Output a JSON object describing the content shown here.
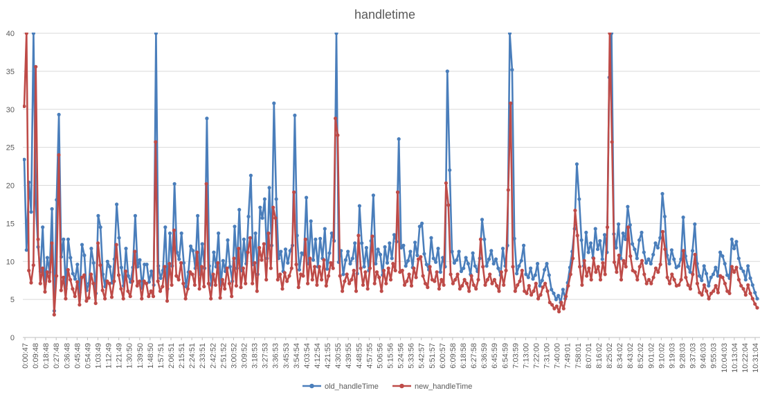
{
  "chart_data": {
    "type": "line",
    "title": "handletime",
    "xlabel": "",
    "ylabel": "",
    "ylim": [
      0,
      40
    ],
    "yticks": [
      0,
      5,
      10,
      15,
      20,
      25,
      30,
      35,
      40
    ],
    "grid": true,
    "legend_position": "bottom",
    "xtick_labels": [
      "0:00:47",
      "0:09:48",
      "0:18:48",
      "0:27:48",
      "0:36:48",
      "0:45:48",
      "0:54:49",
      "1:03:49",
      "1:12:49",
      "1:21:49",
      "1:30:50",
      "1:39:50",
      "1:48:50",
      "1:57:51",
      "2:06:51",
      "2:15:51",
      "2:24:51",
      "2:33:51",
      "2:42:52",
      "2:51:52",
      "3:00:52",
      "3:09:52",
      "3:18:53",
      "3:27:53",
      "3:36:53",
      "3:45:53",
      "3:54:54",
      "4:03:54",
      "4:12:54",
      "4:21:55",
      "4:30:55",
      "4:39:55",
      "4:48:55",
      "4:57:55",
      "5:06:56",
      "5:15:56",
      "5:24:56",
      "5:33:56",
      "5:42:57",
      "5:51:57",
      "6:00:57",
      "6:09:58",
      "6:18:58",
      "6:27:58",
      "6:36:59",
      "6:45:59",
      "6:54:59",
      "7:03:59",
      "7:13:00",
      "7:22:00",
      "7:31:00",
      "7:40:00",
      "7:49:01",
      "7:58:01",
      "8:07:01",
      "8:16:02",
      "8:25:02",
      "8:34:02",
      "8:43:02",
      "8:52:02",
      "9:01:02",
      "9:10:02",
      "9:19:03",
      "9:28:03",
      "9:37:03",
      "9:46:03",
      "9:55:03",
      "10:04:03",
      "10:13:04",
      "10:22:04",
      "10:31:04"
    ],
    "series": [
      {
        "name": "old_handleTime",
        "color": "#4a7ebb",
        "values": [
          23.4,
          11.5,
          20.4,
          16.5,
          42,
          17.8,
          11.9,
          8.7,
          14.5,
          7,
          10.5,
          8.6,
          16.9,
          3.5,
          18.1,
          29.3,
          10.6,
          12.9,
          6.4,
          12.9,
          10.5,
          8.4,
          7.7,
          9.6,
          5.9,
          12.2,
          10.8,
          6.2,
          7.1,
          11.7,
          9.8,
          5.8,
          16,
          14.5,
          8.3,
          6.7,
          10,
          9.3,
          7.2,
          10.3,
          17.5,
          13.1,
          9.2,
          6.8,
          11.7,
          8.1,
          7.3,
          9.2,
          16,
          9.3,
          10.2,
          6.5,
          9.6,
          9.6,
          7.3,
          8.7,
          6.9,
          42,
          9.4,
          7.8,
          8.8,
          14.5,
          6.4,
          13.7,
          9.4,
          20.2,
          11.2,
          10.3,
          13.7,
          9.8,
          6.7,
          8.6,
          12,
          11.4,
          9.1,
          16,
          8.3,
          12.3,
          9.1,
          28.8,
          9.4,
          6.9,
          11.2,
          9.3,
          13.7,
          6.9,
          10.1,
          8.7,
          12.8,
          9.3,
          7.4,
          14.6,
          9.1,
          16.8,
          8.8,
          12.9,
          9.7,
          15.9,
          21.3,
          9.6,
          13.7,
          8.3,
          17.1,
          15.7,
          18.2,
          10.4,
          19.7,
          12.1,
          30.8,
          18.2,
          10.4,
          11.3,
          8.7,
          11.6,
          9.8,
          11.4,
          12.1,
          29.2,
          13.4,
          8.9,
          11.1,
          10.9,
          18.4,
          9.7,
          15.3,
          10.2,
          12.9,
          9.3,
          13,
          10.4,
          14.3,
          9,
          11.1,
          13.7,
          12.7,
          42,
          9.9,
          11.4,
          8.3,
          10.2,
          11.3,
          9.7,
          10.4,
          12.4,
          8.4,
          17.3,
          12.4,
          9.3,
          11.8,
          8.8,
          12.7,
          18.7,
          9.7,
          11.6,
          10.9,
          8.2,
          11.9,
          9.8,
          12.4,
          10.4,
          13.5,
          12.6,
          26.1,
          11.8,
          12.1,
          9.4,
          10.1,
          11.3,
          9.2,
          12.5,
          10.8,
          14.6,
          15,
          11,
          9.6,
          8.9,
          13.1,
          10.4,
          9.9,
          11.7,
          8.6,
          10.5,
          9.3,
          35,
          22,
          11.3,
          9.8,
          10.2,
          11.3,
          8.7,
          9.1,
          10.5,
          9.7,
          8.3,
          11.1,
          9.4,
          8.7,
          10.4,
          15.5,
          12.9,
          9.4,
          10.3,
          11.4,
          9.7,
          10.3,
          9.1,
          8.2,
          11.7,
          9.4,
          12.1,
          42,
          35.2,
          13,
          8.4,
          9.4,
          10.1,
          12.1,
          8.3,
          7.9,
          9.1,
          7.7,
          8.2,
          9.7,
          6.8,
          7.5,
          8.9,
          9.7,
          8.2,
          6.3,
          5.8,
          5,
          5.5,
          4.6,
          6.3,
          5.1,
          7.2,
          9.2,
          11.3,
          14.3,
          22.8,
          18.2,
          12.8,
          9.4,
          13.8,
          11.2,
          12.4,
          10.5,
          14.3,
          11.6,
          12.7,
          10.3,
          13.5,
          11.2,
          34.2,
          42,
          13.6,
          11.8,
          14.9,
          10.4,
          13.7,
          12.9,
          17.2,
          14.8,
          12.3,
          11.6,
          10.4,
          12.8,
          13.8,
          11.2,
          9.8,
          10.3,
          9.7,
          10.9,
          12.4,
          11.8,
          13.1,
          18.9,
          15.9,
          10.8,
          9.7,
          11.5,
          10.3,
          9.2,
          9.4,
          10.3,
          15.8,
          10.7,
          9.3,
          8.6,
          11.4,
          14.9,
          9.7,
          8.1,
          7.5,
          9.4,
          8.4,
          6.8,
          7.9,
          8.3,
          9.2,
          8.1,
          11.2,
          10.7,
          9.7,
          8.2,
          7.8,
          12.9,
          11.7,
          12.6,
          10.4,
          9.1,
          8.7,
          7.6,
          9.4,
          7.8,
          6.9,
          5.9,
          5.1
        ]
      },
      {
        "name": "new_handleTime",
        "color": "#be4b48",
        "values": [
          30.4,
          42,
          8.8,
          7.2,
          9.5,
          35.6,
          12.9,
          7.1,
          9.1,
          6,
          8.6,
          7.4,
          12.4,
          3,
          8.1,
          24,
          6.2,
          7.9,
          5.1,
          8.9,
          7.6,
          6.4,
          5.4,
          7.3,
          4.3,
          7.9,
          8.2,
          4.8,
          5.2,
          8.3,
          7.1,
          4.5,
          12.4,
          9.5,
          6.2,
          5.1,
          7.4,
          7.1,
          5.3,
          7.4,
          12.2,
          8.2,
          6.4,
          5.1,
          8.7,
          6.1,
          5.4,
          7.4,
          11.3,
          6.8,
          7.4,
          5.1,
          7.4,
          7.1,
          5.4,
          6.1,
          5.4,
          25.7,
          7.4,
          6.1,
          6.7,
          9.3,
          4.8,
          9.7,
          6.9,
          14.1,
          8.1,
          7.6,
          9.8,
          7.1,
          5.1,
          6.4,
          8.6,
          8.3,
          6.9,
          11.2,
          6.4,
          9.3,
          6.7,
          20.2,
          7.1,
          5.1,
          8.3,
          6.9,
          9.8,
          5.2,
          7.6,
          6.4,
          9.1,
          7.1,
          5.4,
          10.4,
          6.8,
          11.7,
          6.6,
          9.1,
          7.1,
          11.2,
          13.1,
          7.1,
          9.8,
          6.1,
          11.8,
          10.2,
          12.3,
          7.6,
          13.7,
          9.1,
          17.1,
          15.7,
          7.6,
          8.3,
          6.4,
          8.5,
          7.4,
          8.1,
          9.1,
          19.1,
          9.6,
          6.6,
          8.3,
          8.1,
          12.9,
          7.1,
          10.4,
          7.6,
          9.3,
          6.9,
          9.3,
          7.6,
          10.2,
          6.8,
          8.1,
          9.8,
          9.1,
          28.8,
          26.6,
          8.1,
          6.1,
          7.4,
          8.3,
          7.1,
          7.6,
          8.8,
          6.1,
          13.4,
          9.1,
          6.9,
          8.6,
          6.4,
          9.1,
          13.3,
          7.1,
          8.6,
          7.9,
          6.1,
          8.8,
          7.1,
          9.1,
          7.6,
          9.7,
          8.8,
          19.1,
          8.6,
          8.8,
          6.9,
          7.4,
          8.3,
          6.8,
          9.1,
          7.9,
          10.3,
          10.6,
          8.1,
          7.1,
          6.6,
          9.3,
          7.6,
          7.4,
          8.6,
          6.4,
          7.6,
          6.9,
          20.3,
          17.4,
          8.3,
          7.1,
          7.6,
          8.3,
          6.4,
          6.8,
          7.6,
          7.1,
          6.1,
          8.1,
          6.9,
          6.4,
          7.6,
          12.9,
          9.3,
          6.9,
          7.6,
          8.3,
          7.1,
          7.6,
          6.8,
          6.1,
          8.6,
          6.9,
          8.8,
          19.4,
          30.8,
          9.3,
          6.1,
          6.9,
          7.4,
          8.8,
          6.1,
          5.8,
          6.8,
          5.6,
          6.1,
          7.1,
          5.1,
          5.6,
          6.6,
          7.1,
          6.1,
          4.6,
          4.3,
          3.8,
          4.1,
          3.4,
          4.6,
          3.8,
          5.4,
          6.8,
          8.3,
          10.4,
          16.7,
          13.4,
          9.3,
          6.9,
          10.1,
          8.1,
          9.1,
          7.6,
          10.4,
          8.6,
          9.3,
          7.6,
          9.8,
          8.3,
          14.5,
          42,
          25.7,
          9.9,
          8.6,
          10.8,
          7.6,
          10.1,
          9.3,
          14.5,
          10.7,
          8.8,
          8.6,
          7.6,
          9.3,
          10.1,
          8.3,
          7.1,
          7.6,
          7.1,
          7.9,
          9.1,
          8.6,
          9.6,
          13.9,
          11.6,
          7.9,
          7.1,
          8.3,
          7.6,
          6.8,
          6.9,
          7.6,
          11.4,
          7.9,
          6.9,
          6.4,
          8.3,
          10.9,
          7.1,
          5.9,
          5.6,
          6.9,
          6.1,
          5.1,
          5.8,
          6.1,
          6.8,
          5.9,
          8.1,
          7.9,
          7.1,
          6.1,
          5.8,
          9.3,
          8.6,
          9.2,
          7.6,
          6.8,
          6.4,
          5.6,
          6.9,
          5.8,
          5.1,
          4.4,
          3.9
        ]
      }
    ]
  }
}
